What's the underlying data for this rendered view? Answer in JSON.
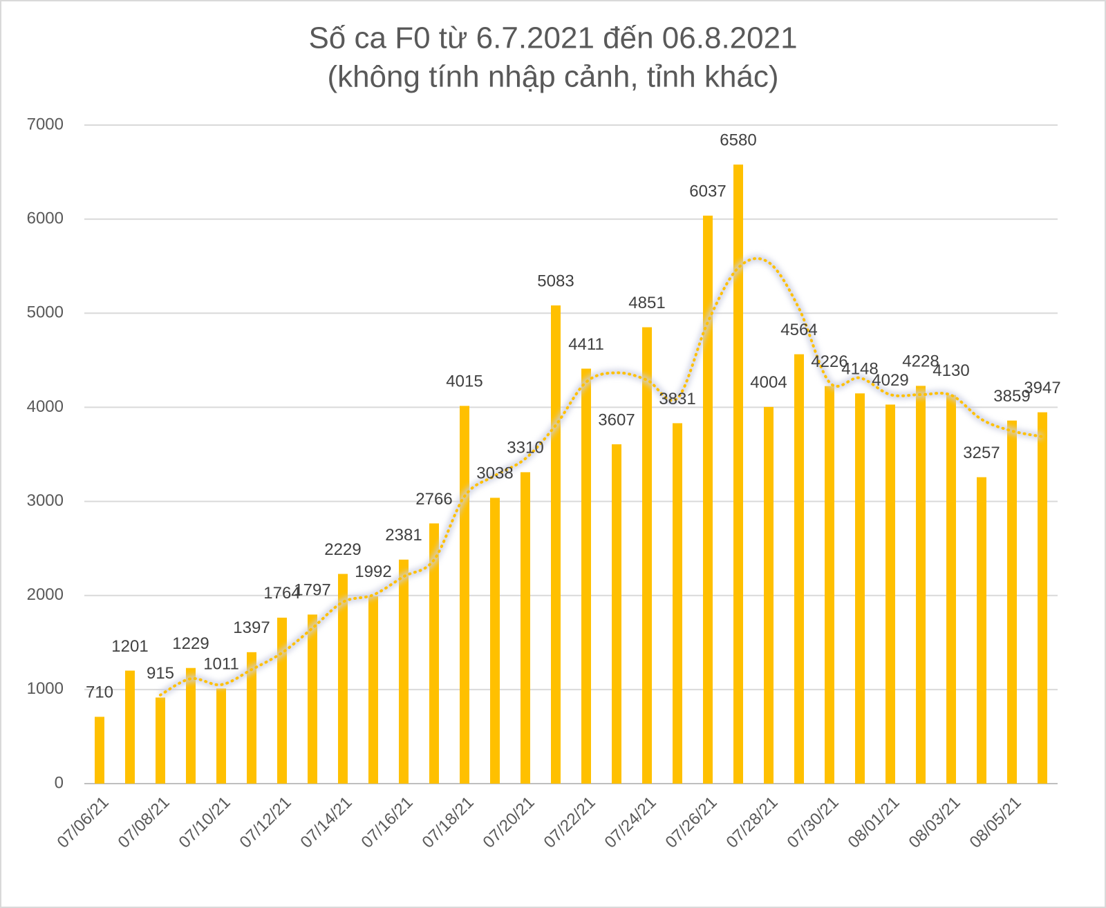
{
  "chart_data": {
    "type": "bar",
    "title": "Số ca F0 từ 6.7.2021 đến 06.8.2021",
    "subtitle": "(không tính nhập cảnh, tỉnh khác)",
    "categories": [
      "07/06/21",
      null,
      "07/08/21",
      null,
      "07/10/21",
      null,
      "07/12/21",
      null,
      "07/14/21",
      null,
      "07/16/21",
      null,
      "07/18/21",
      null,
      "07/20/21",
      null,
      "07/22/21",
      null,
      "07/24/21",
      null,
      "07/26/21",
      null,
      "07/28/21",
      null,
      "07/30/21",
      null,
      "08/01/21",
      null,
      "08/03/21",
      null,
      "08/05/21",
      null
    ],
    "values": [
      710,
      1201,
      915,
      1229,
      1011,
      1397,
      1764,
      1797,
      2229,
      1992,
      2381,
      2766,
      4015,
      3038,
      3310,
      5083,
      4411,
      3607,
      4851,
      3831,
      6037,
      6580,
      4004,
      4564,
      4226,
      4148,
      4029,
      4228,
      4130,
      3257,
      3859,
      3947
    ],
    "color": "#ffc000",
    "ylim": [
      0,
      7000
    ],
    "yticks": [
      0,
      1000,
      2000,
      3000,
      4000,
      5000,
      6000,
      7000
    ],
    "grid": true,
    "trendline": {
      "type": "moving_average",
      "period": 3,
      "color": "#ffc000"
    }
  }
}
